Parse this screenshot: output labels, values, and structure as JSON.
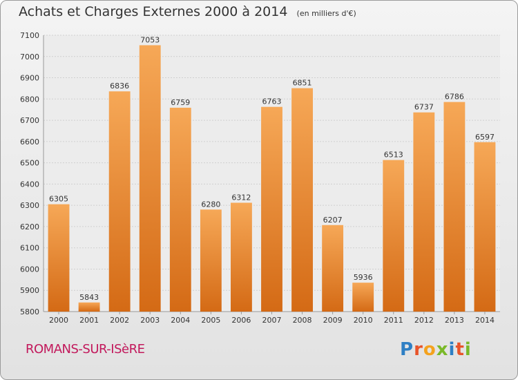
{
  "header": {
    "title": "Achats et Charges Externes 2000 à 2014",
    "unit": "(en milliers d'€)"
  },
  "footer": {
    "city": "ROMANS-SUR-ISèRE",
    "logo_letters": [
      {
        "ch": "P",
        "color": "#2e7fc4"
      },
      {
        "ch": "r",
        "color": "#e8542a"
      },
      {
        "ch": "o",
        "color": "#f4a21e"
      },
      {
        "ch": "x",
        "color": "#7ab929"
      },
      {
        "ch": "i",
        "color": "#2e7fc4"
      },
      {
        "ch": "t",
        "color": "#e8542a"
      },
      {
        "ch": "i",
        "color": "#7ab929"
      }
    ]
  },
  "colors": {
    "bar_top": "#f6a857",
    "bar_bottom": "#d46a15",
    "grid": "#cfcfcf"
  },
  "chart_data": {
    "type": "bar",
    "categories": [
      "2000",
      "2001",
      "2002",
      "2003",
      "2004",
      "2005",
      "2006",
      "2007",
      "2008",
      "2009",
      "2010",
      "2011",
      "2012",
      "2013",
      "2014"
    ],
    "values": [
      6305,
      5843,
      6836,
      7053,
      6759,
      6280,
      6312,
      6763,
      6851,
      6207,
      5936,
      6513,
      6737,
      6786,
      6597
    ],
    "ylim": [
      5800,
      7100
    ],
    "yticks": [
      5800,
      5900,
      6000,
      6100,
      6200,
      6300,
      6400,
      6500,
      6600,
      6700,
      6800,
      6900,
      7000,
      7100
    ],
    "grid": true
  }
}
